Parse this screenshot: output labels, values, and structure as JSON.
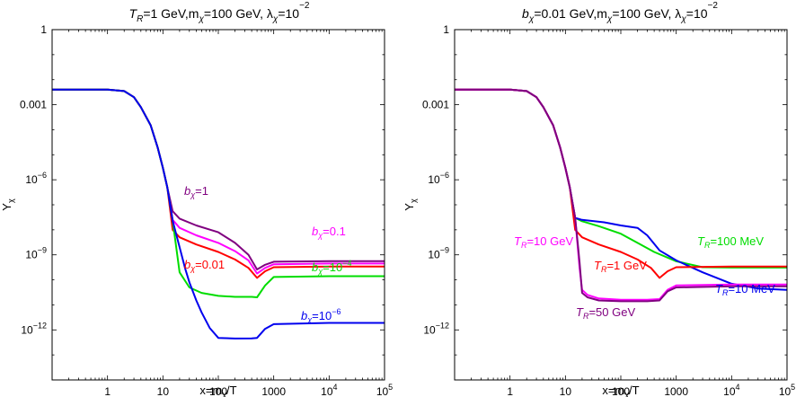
{
  "chart_data": [
    {
      "type": "line",
      "title": "T_R=1 GeV, m_χ=100 GeV, λ_χ=10^-2",
      "title_parts": [
        "T",
        "R",
        "=1 GeV,m",
        "χ",
        "=100 GeV, λ",
        "χ",
        "=10",
        "−2"
      ],
      "xlabel": "x=m_χ/T",
      "xlabel_parts": [
        "x=m",
        "χ",
        "/T"
      ],
      "ylabel": "Y_χ",
      "ylabel_parts": [
        "Y",
        "χ"
      ],
      "x_scale": "log",
      "y_scale": "log",
      "xlim": [
        0.1,
        100000
      ],
      "ylim": [
        1e-14,
        1
      ],
      "x_ticks": [
        {
          "v": 1,
          "label": "1"
        },
        {
          "v": 10,
          "label": "10"
        },
        {
          "v": 100,
          "label": "100"
        },
        {
          "v": 1000,
          "label": "1000"
        },
        {
          "v": 10000,
          "base": "10",
          "exp": "4"
        },
        {
          "v": 100000,
          "base": "10",
          "exp": "5"
        }
      ],
      "y_ticks": [
        {
          "v": 1e-12,
          "base": "10",
          "exp": "−12"
        },
        {
          "v": 1e-09,
          "base": "10",
          "exp": "−9"
        },
        {
          "v": 1e-06,
          "base": "10",
          "exp": "−6"
        },
        {
          "v": 0.001,
          "label": "0.001"
        },
        {
          "v": 1,
          "label": "1"
        }
      ],
      "series": [
        {
          "name": "b_χ=1",
          "color": "#800080",
          "label_parts": [
            "b",
            "χ",
            "=1"
          ],
          "points": [
            [
              0.1,
              0.004
            ],
            [
              1,
              0.004
            ],
            [
              2,
              0.0035
            ],
            [
              3,
              0.002
            ],
            [
              4,
              0.0008
            ],
            [
              6,
              0.00015
            ],
            [
              8,
              2e-05
            ],
            [
              10,
              3e-06
            ],
            [
              12,
              5e-07
            ],
            [
              15,
              5.5e-08
            ],
            [
              20,
              2.8e-08
            ],
            [
              40,
              1.5e-08
            ],
            [
              100,
              8e-09
            ],
            [
              200,
              3e-09
            ],
            [
              350,
              1e-09
            ],
            [
              500,
              2.6e-10
            ],
            [
              700,
              4e-10
            ],
            [
              1000,
              5.3e-10
            ],
            [
              10000,
              5.6e-10
            ],
            [
              100000,
              5.6e-10
            ]
          ]
        },
        {
          "name": "b_χ=0.1",
          "color": "#ff00ff",
          "label_parts": [
            "b",
            "χ",
            "=0.1"
          ],
          "points": [
            [
              0.1,
              0.004
            ],
            [
              1,
              0.004
            ],
            [
              2,
              0.0035
            ],
            [
              3,
              0.002
            ],
            [
              4,
              0.0008
            ],
            [
              6,
              0.00015
            ],
            [
              8,
              2e-05
            ],
            [
              10,
              3e-06
            ],
            [
              12,
              5e-07
            ],
            [
              15,
              2.5e-08
            ],
            [
              20,
              1.2e-08
            ],
            [
              40,
              6e-09
            ],
            [
              100,
              3e-09
            ],
            [
              200,
              1.4e-09
            ],
            [
              350,
              6e-10
            ],
            [
              500,
              1.8e-10
            ],
            [
              700,
              3e-10
            ],
            [
              1000,
              4.2e-10
            ],
            [
              10000,
              4.5e-10
            ],
            [
              100000,
              4.5e-10
            ]
          ]
        },
        {
          "name": "b_χ=0.01",
          "color": "#ff0000",
          "label_parts": [
            "b",
            "χ",
            "=0.01"
          ],
          "points": [
            [
              0.1,
              0.004
            ],
            [
              1,
              0.004
            ],
            [
              2,
              0.0035
            ],
            [
              3,
              0.002
            ],
            [
              4,
              0.0008
            ],
            [
              6,
              0.00015
            ],
            [
              8,
              2e-05
            ],
            [
              10,
              3e-06
            ],
            [
              12,
              5e-07
            ],
            [
              15,
              1e-08
            ],
            [
              20,
              5e-09
            ],
            [
              40,
              2.6e-09
            ],
            [
              100,
              1.3e-09
            ],
            [
              200,
              6.5e-10
            ],
            [
              350,
              3e-10
            ],
            [
              500,
              1.2e-10
            ],
            [
              700,
              2.2e-10
            ],
            [
              1000,
              3.2e-10
            ],
            [
              10000,
              3.4e-10
            ],
            [
              100000,
              3.4e-10
            ]
          ]
        },
        {
          "name": "b_χ=10^-4",
          "color": "#00dd00",
          "label_parts": [
            "b",
            "χ",
            "=10",
            "−4"
          ],
          "points": [
            [
              0.1,
              0.004
            ],
            [
              1,
              0.004
            ],
            [
              2,
              0.0035
            ],
            [
              3,
              0.002
            ],
            [
              4,
              0.0008
            ],
            [
              6,
              0.00015
            ],
            [
              8,
              2e-05
            ],
            [
              10,
              3e-06
            ],
            [
              12,
              5e-07
            ],
            [
              15,
              2.3e-08
            ],
            [
              20,
              2e-10
            ],
            [
              30,
              5e-11
            ],
            [
              50,
              3e-11
            ],
            [
              100,
              2.3e-11
            ],
            [
              200,
              2.1e-11
            ],
            [
              400,
              2.1e-11
            ],
            [
              500,
              2e-11
            ],
            [
              700,
              6e-11
            ],
            [
              1000,
              1.3e-10
            ],
            [
              10000,
              1.4e-10
            ],
            [
              100000,
              1.4e-10
            ]
          ]
        },
        {
          "name": "b_χ=10^-6",
          "color": "#0000ee",
          "label_parts": [
            "b",
            "χ",
            "=10",
            "−6"
          ],
          "points": [
            [
              0.1,
              0.004
            ],
            [
              1,
              0.004
            ],
            [
              2,
              0.0035
            ],
            [
              3,
              0.002
            ],
            [
              4,
              0.0008
            ],
            [
              6,
              0.00015
            ],
            [
              8,
              2e-05
            ],
            [
              10,
              3e-06
            ],
            [
              12,
              5e-07
            ],
            [
              15,
              2.3e-08
            ],
            [
              20,
              2e-09
            ],
            [
              25,
              3e-10
            ],
            [
              30,
              8e-11
            ],
            [
              40,
              1.5e-11
            ],
            [
              50,
              5e-12
            ],
            [
              70,
              1.2e-12
            ],
            [
              100,
              4.8e-13
            ],
            [
              200,
              4.5e-13
            ],
            [
              400,
              4.6e-13
            ],
            [
              500,
              4.8e-13
            ],
            [
              700,
              1.1e-12
            ],
            [
              1000,
              1.7e-12
            ],
            [
              10000,
              1.9e-12
            ],
            [
              100000,
              1.9e-12
            ]
          ]
        }
      ]
    },
    {
      "type": "line",
      "title": "b_χ=0.01 GeV, m_χ=100 GeV, λ_χ=10^-2",
      "title_parts": [
        "b",
        "χ",
        "=0.01 GeV,m",
        "χ",
        "=100 GeV, λ",
        "χ",
        "=10",
        "−2"
      ],
      "xlabel": "x=m_χ/T",
      "xlabel_parts": [
        "x=m",
        "χ",
        "/T"
      ],
      "ylabel": "Y_χ",
      "ylabel_parts": [
        "Y",
        "χ"
      ],
      "x_scale": "log",
      "y_scale": "log",
      "xlim": [
        0.1,
        100000
      ],
      "ylim": [
        1e-14,
        1
      ],
      "x_ticks": [
        {
          "v": 1,
          "label": "1"
        },
        {
          "v": 10,
          "label": "10"
        },
        {
          "v": 100,
          "label": "100"
        },
        {
          "v": 1000,
          "label": "1000"
        },
        {
          "v": 10000,
          "base": "10",
          "exp": "4"
        },
        {
          "v": 100000,
          "base": "10",
          "exp": "5"
        }
      ],
      "y_ticks": [
        {
          "v": 1e-12,
          "base": "10",
          "exp": "−12"
        },
        {
          "v": 1e-09,
          "base": "10",
          "exp": "−9"
        },
        {
          "v": 1e-06,
          "base": "10",
          "exp": "−6"
        },
        {
          "v": 0.001,
          "label": "0.001"
        },
        {
          "v": 1,
          "label": "1"
        }
      ],
      "series": [
        {
          "name": "T_R=100 MeV",
          "color": "#00dd00",
          "label_parts": [
            "T",
            "R",
            "=100 MeV"
          ],
          "points": [
            [
              0.1,
              0.004
            ],
            [
              1,
              0.004
            ],
            [
              2,
              0.0035
            ],
            [
              3,
              0.002
            ],
            [
              4,
              0.0008
            ],
            [
              6,
              0.00015
            ],
            [
              8,
              2e-05
            ],
            [
              10,
              3e-06
            ],
            [
              12,
              5e-07
            ],
            [
              15,
              3e-08
            ],
            [
              20,
              2.2e-08
            ],
            [
              40,
              1.4e-08
            ],
            [
              100,
              7e-09
            ],
            [
              200,
              3e-09
            ],
            [
              400,
              1.3e-09
            ],
            [
              1000,
              5.5e-10
            ],
            [
              3000,
              3.2e-10
            ],
            [
              10000,
              3.1e-10
            ],
            [
              100000,
              3.1e-10
            ]
          ]
        },
        {
          "name": "T_R=10 MeV",
          "color": "#0000ee",
          "label_parts": [
            "T",
            "R",
            "=10 MeV"
          ],
          "points": [
            [
              0.1,
              0.004
            ],
            [
              1,
              0.004
            ],
            [
              2,
              0.0035
            ],
            [
              3,
              0.002
            ],
            [
              4,
              0.0008
            ],
            [
              6,
              0.00015
            ],
            [
              8,
              2e-05
            ],
            [
              10,
              3e-06
            ],
            [
              12,
              5e-07
            ],
            [
              15,
              3e-08
            ],
            [
              20,
              2.5e-08
            ],
            [
              50,
              2e-08
            ],
            [
              100,
              1.5e-08
            ],
            [
              200,
              1.2e-08
            ],
            [
              300,
              6e-09
            ],
            [
              500,
              1.5e-09
            ],
            [
              1000,
              6e-10
            ],
            [
              3000,
              2e-10
            ],
            [
              10000,
              7e-11
            ],
            [
              30000,
              4.5e-11
            ],
            [
              100000,
              4e-11
            ]
          ]
        },
        {
          "name": "T_R=1 GeV",
          "color": "#ff0000",
          "label_parts": [
            "T",
            "R",
            "=1 GeV"
          ],
          "points": [
            [
              0.1,
              0.004
            ],
            [
              1,
              0.004
            ],
            [
              2,
              0.0035
            ],
            [
              3,
              0.002
            ],
            [
              4,
              0.0008
            ],
            [
              6,
              0.00015
            ],
            [
              8,
              2e-05
            ],
            [
              10,
              3e-06
            ],
            [
              12,
              5e-07
            ],
            [
              15,
              1e-08
            ],
            [
              20,
              5e-09
            ],
            [
              40,
              2.6e-09
            ],
            [
              100,
              1.3e-09
            ],
            [
              200,
              6.5e-10
            ],
            [
              350,
              3e-10
            ],
            [
              500,
              1.2e-10
            ],
            [
              700,
              2.2e-10
            ],
            [
              1000,
              3.2e-10
            ],
            [
              10000,
              3.4e-10
            ],
            [
              100000,
              3.4e-10
            ]
          ]
        },
        {
          "name": "T_R=10 GeV",
          "color": "#ff00ff",
          "label_parts": [
            "T",
            "R",
            "=10 GeV"
          ],
          "points": [
            [
              0.1,
              0.004
            ],
            [
              1,
              0.004
            ],
            [
              2,
              0.0035
            ],
            [
              3,
              0.002
            ],
            [
              4,
              0.0008
            ],
            [
              6,
              0.00015
            ],
            [
              8,
              2e-05
            ],
            [
              10,
              3e-06
            ],
            [
              12,
              5e-07
            ],
            [
              15,
              3e-08
            ],
            [
              18,
              3e-10
            ],
            [
              20,
              4e-11
            ],
            [
              25,
              2.5e-11
            ],
            [
              40,
              1.8e-11
            ],
            [
              100,
              1.6e-11
            ],
            [
              300,
              1.6e-11
            ],
            [
              500,
              1.7e-11
            ],
            [
              700,
              4e-11
            ],
            [
              1000,
              6e-11
            ],
            [
              10000,
              6.5e-11
            ],
            [
              100000,
              6.5e-11
            ]
          ]
        },
        {
          "name": "T_R=50 GeV",
          "color": "#800080",
          "label_parts": [
            "T",
            "R",
            "=50 GeV"
          ],
          "points": [
            [
              0.1,
              0.004
            ],
            [
              1,
              0.004
            ],
            [
              2,
              0.0035
            ],
            [
              3,
              0.002
            ],
            [
              4,
              0.0008
            ],
            [
              6,
              0.00015
            ],
            [
              8,
              2e-05
            ],
            [
              10,
              3e-06
            ],
            [
              12,
              5e-07
            ],
            [
              15,
              3e-08
            ],
            [
              17,
              2e-09
            ],
            [
              18,
              5e-10
            ],
            [
              20,
              3e-11
            ],
            [
              25,
              2e-11
            ],
            [
              40,
              1.5e-11
            ],
            [
              100,
              1.4e-11
            ],
            [
              300,
              1.4e-11
            ],
            [
              500,
              1.5e-11
            ],
            [
              700,
              3.5e-11
            ],
            [
              1000,
              5e-11
            ],
            [
              10000,
              5.5e-11
            ],
            [
              100000,
              5.5e-11
            ]
          ]
        }
      ]
    }
  ]
}
